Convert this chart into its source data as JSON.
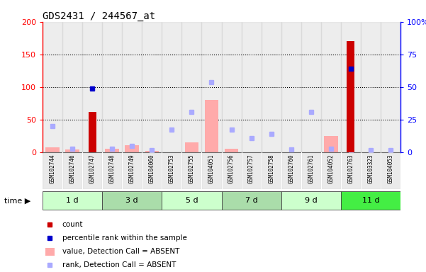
{
  "title": "GDS2431 / 244567_at",
  "samples": [
    "GSM102744",
    "GSM102746",
    "GSM102747",
    "GSM102748",
    "GSM102749",
    "GSM104060",
    "GSM102753",
    "GSM102755",
    "GSM104051",
    "GSM102756",
    "GSM102757",
    "GSM102758",
    "GSM102760",
    "GSM102761",
    "GSM104052",
    "GSM102763",
    "GSM103323",
    "GSM104053"
  ],
  "time_groups": [
    {
      "label": "1 d",
      "start": 0,
      "end": 2,
      "color": "#ccffcc"
    },
    {
      "label": "3 d",
      "start": 3,
      "end": 5,
      "color": "#aaddaa"
    },
    {
      "label": "5 d",
      "start": 6,
      "end": 8,
      "color": "#ccffcc"
    },
    {
      "label": "7 d",
      "start": 9,
      "end": 11,
      "color": "#aaddaa"
    },
    {
      "label": "9 d",
      "start": 12,
      "end": 14,
      "color": "#ccffcc"
    },
    {
      "label": "11 d",
      "start": 15,
      "end": 17,
      "color": "#44ee44"
    }
  ],
  "count_values": [
    0,
    0,
    62,
    0,
    0,
    0,
    0,
    0,
    0,
    0,
    0,
    0,
    0,
    0,
    0,
    170,
    0,
    0
  ],
  "percentile_values": [
    0,
    0,
    98,
    0,
    0,
    0,
    0,
    0,
    0,
    0,
    0,
    0,
    0,
    0,
    0,
    128,
    0,
    0
  ],
  "value_absent": [
    8,
    4,
    0,
    6,
    11,
    2,
    0,
    15,
    80,
    6,
    0,
    0,
    0,
    0,
    25,
    0,
    0,
    0
  ],
  "rank_absent": [
    40,
    5,
    0,
    5,
    10,
    3,
    35,
    62,
    108,
    35,
    22,
    28,
    4,
    62,
    5,
    3,
    3,
    3
  ],
  "ylim_left": [
    0,
    200
  ],
  "right_ticks": [
    0,
    50,
    100,
    150,
    200
  ],
  "right_tick_labels": [
    "0",
    "25",
    "50",
    "75",
    "100%"
  ],
  "left_ticks": [
    0,
    50,
    100,
    150,
    200
  ],
  "left_tick_labels": [
    "0",
    "50",
    "100",
    "150",
    "200"
  ],
  "dotted_lines": [
    50,
    100,
    150
  ],
  "count_color": "#cc0000",
  "percentile_color": "#0000cc",
  "value_absent_color": "#ffaaaa",
  "rank_absent_color": "#aaaaff",
  "legend_items": [
    {
      "color": "#cc0000",
      "shape": "square",
      "label": "count"
    },
    {
      "color": "#0000cc",
      "shape": "square",
      "label": "percentile rank within the sample"
    },
    {
      "color": "#ffaaaa",
      "shape": "rect",
      "label": "value, Detection Call = ABSENT"
    },
    {
      "color": "#aaaaff",
      "shape": "square",
      "label": "rank, Detection Call = ABSENT"
    }
  ]
}
